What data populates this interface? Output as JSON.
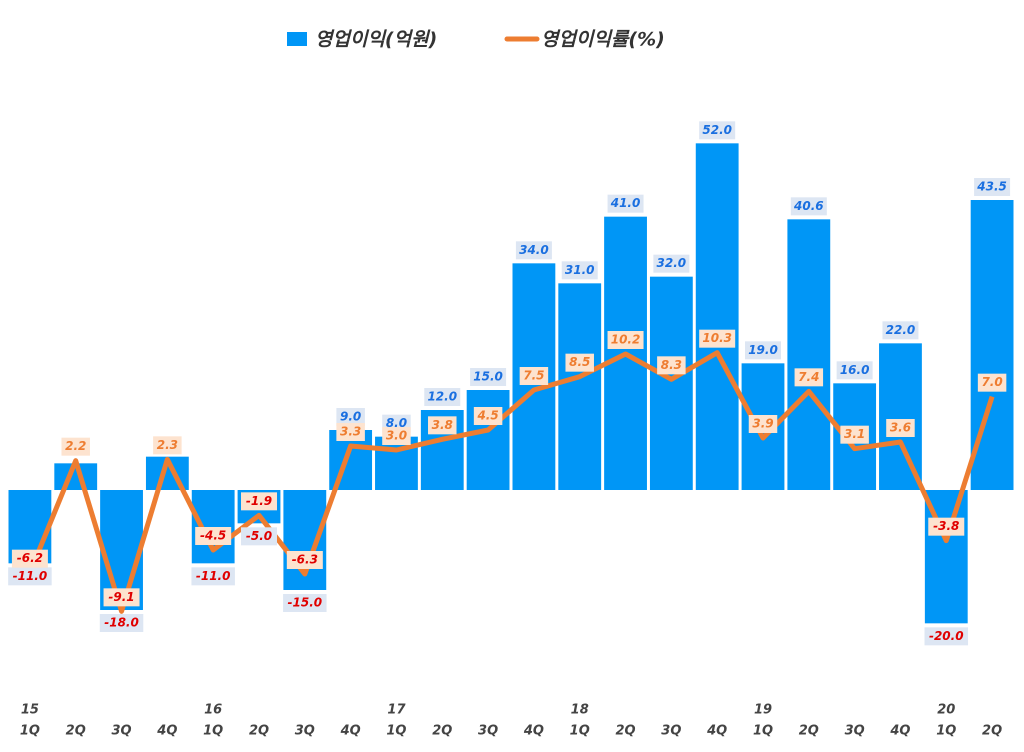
{
  "chart_data": {
    "type": "combo",
    "categories": [
      "1Q",
      "2Q",
      "3Q",
      "4Q",
      "1Q",
      "2Q",
      "3Q",
      "4Q",
      "1Q",
      "2Q",
      "3Q",
      "4Q",
      "1Q",
      "2Q",
      "3Q",
      "4Q",
      "1Q",
      "2Q",
      "3Q",
      "4Q",
      "1Q",
      "2Q"
    ],
    "years": [
      "15",
      null,
      null,
      null,
      "16",
      null,
      null,
      null,
      "17",
      null,
      null,
      null,
      "18",
      null,
      null,
      null,
      "19",
      null,
      null,
      null,
      "20",
      null
    ],
    "series": [
      {
        "name": "영업이익(억원)",
        "type": "bar",
        "color": "#0096f6",
        "values": [
          -11,
          4,
          -18,
          5,
          -11,
          -5,
          -15,
          9,
          8,
          12,
          15,
          34,
          31,
          41,
          32,
          52,
          19,
          40.6,
          16,
          22,
          -20,
          43.5
        ],
        "value_labels": [
          "-11.0",
          null,
          "-18.0",
          null,
          "-11.0",
          "-5.0",
          "-15.0",
          "9.0",
          "8.0",
          "12.0",
          "15.0",
          "34.0",
          "31.0",
          "41.0",
          "32.0",
          "52.0",
          "19.0",
          "40.6",
          "16.0",
          "22.0",
          "-20.0",
          "43.5"
        ]
      },
      {
        "name": "영업이익률(%)",
        "type": "line",
        "axis": "y2",
        "color": "#ed7d31",
        "values": [
          -6.2,
          2.2,
          -9.1,
          2.3,
          -4.5,
          -1.9,
          -6.3,
          3.3,
          3.0,
          3.8,
          4.5,
          7.5,
          8.5,
          10.2,
          8.3,
          10.3,
          3.9,
          7.4,
          3.1,
          3.6,
          -3.8,
          7.0
        ],
        "value_labels": [
          "-6.2",
          "2.2",
          "-9.1",
          "2.3",
          "-4.5",
          "-1.9",
          "-6.3",
          "3.3",
          "3.0",
          "3.8",
          "4.5",
          "7.5",
          "8.5",
          "10.2",
          "8.3",
          "10.3",
          "3.9",
          "7.4",
          "3.1",
          "3.6",
          "-3.8",
          "7.0"
        ]
      }
    ],
    "ylim": [
      -30,
      60
    ],
    "y2lim": [
      -15,
      30
    ],
    "grid": false
  }
}
